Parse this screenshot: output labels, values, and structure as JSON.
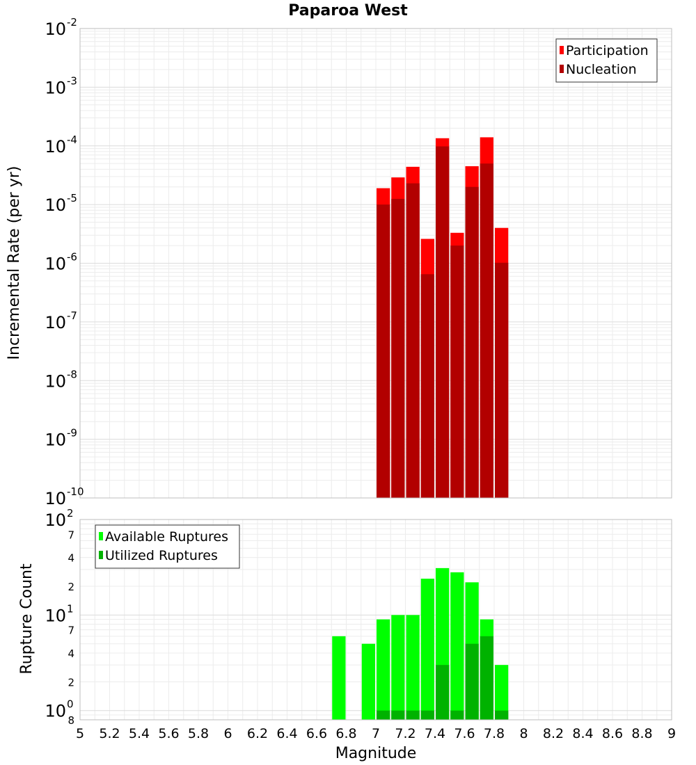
{
  "chart_data": [
    {
      "type": "bar",
      "title": "Paparoa West",
      "ylabel": "Incremental Rate (per yr)",
      "yscale": "log",
      "ylim": [
        1e-10,
        0.01
      ],
      "xlim": [
        5,
        9
      ],
      "bar_width": 0.1,
      "grid": true,
      "legend_position": "top-right",
      "y_tick_decades": [
        {
          "base": "10",
          "exp": "-10",
          "value": 1e-10
        },
        {
          "base": "10",
          "exp": "-9",
          "value": 1e-09
        },
        {
          "base": "10",
          "exp": "-8",
          "value": 1e-08
        },
        {
          "base": "10",
          "exp": "-7",
          "value": 1e-07
        },
        {
          "base": "10",
          "exp": "-6",
          "value": 1e-06
        },
        {
          "base": "10",
          "exp": "-5",
          "value": 1e-05
        },
        {
          "base": "10",
          "exp": "-4",
          "value": 0.0001
        },
        {
          "base": "10",
          "exp": "-3",
          "value": 0.001
        },
        {
          "base": "10",
          "exp": "-2",
          "value": 0.01
        }
      ],
      "series": [
        {
          "name": "Participation",
          "color": "#ff0000",
          "x": [
            7.05,
            7.15,
            7.25,
            7.35,
            7.45,
            7.55,
            7.65,
            7.75,
            7.85
          ],
          "values": [
            1.9e-05,
            2.9e-05,
            4.4e-05,
            2.6e-06,
            0.000135,
            3.3e-06,
            4.5e-05,
            0.00014,
            4e-06
          ]
        },
        {
          "name": "Nucleation",
          "color": "#b20000",
          "x": [
            7.05,
            7.15,
            7.25,
            7.35,
            7.45,
            7.55,
            7.65,
            7.75,
            7.85
          ],
          "values": [
            1e-05,
            1.25e-05,
            2.3e-05,
            6.5e-07,
            9.8e-05,
            2e-06,
            2e-05,
            5e-05,
            1.02e-06
          ]
        }
      ]
    },
    {
      "type": "bar",
      "xlabel": "Magnitude",
      "ylabel": "Rupture Count",
      "yscale": "log",
      "ylim": [
        0.8,
        100
      ],
      "xlim": [
        5,
        9
      ],
      "bar_width": 0.1,
      "grid": true,
      "legend_position": "top-left",
      "x_ticks": [
        "5",
        "5.2",
        "5.4",
        "5.6",
        "5.8",
        "6",
        "6.2",
        "6.4",
        "6.6",
        "6.8",
        "7",
        "7.2",
        "7.4",
        "7.6",
        "7.8",
        "8",
        "8.2",
        "8.4",
        "8.6",
        "8.8",
        "9"
      ],
      "y_tick_decades": [
        {
          "base": "10",
          "exp": "0",
          "value": 1
        },
        {
          "base": "10",
          "exp": "1",
          "value": 10
        },
        {
          "base": "10",
          "exp": "2",
          "value": 100
        }
      ],
      "y_minor_ticks": [
        {
          "label": "8",
          "value": 0.8
        },
        {
          "label": "2",
          "value": 2
        },
        {
          "label": "4",
          "value": 4
        },
        {
          "label": "7",
          "value": 7
        },
        {
          "label": "2",
          "value": 20
        },
        {
          "label": "4",
          "value": 40
        },
        {
          "label": "7",
          "value": 70
        }
      ],
      "series": [
        {
          "name": "Available Ruptures",
          "color": "#00ff00",
          "x": [
            6.75,
            6.95,
            7.05,
            7.15,
            7.25,
            7.35,
            7.45,
            7.55,
            7.65,
            7.75,
            7.85
          ],
          "values": [
            6,
            5,
            9,
            10,
            10,
            24,
            31,
            28,
            22,
            9,
            3
          ]
        },
        {
          "name": "Utilized Ruptures",
          "color": "#00b200",
          "x": [
            7.05,
            7.15,
            7.25,
            7.35,
            7.45,
            7.55,
            7.65,
            7.75,
            7.85
          ],
          "values": [
            1,
            1,
            1,
            1,
            3,
            1,
            5,
            6,
            1
          ]
        }
      ]
    }
  ]
}
